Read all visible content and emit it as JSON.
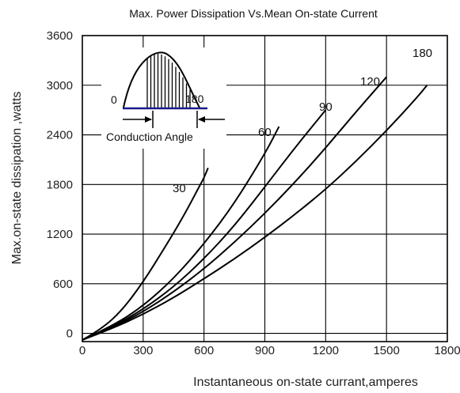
{
  "chart_data": {
    "type": "line",
    "title": "Max. Power Dissipation Vs.Mean On-state Current",
    "xlabel": "Instantaneous on-state currant,amperes",
    "ylabel": "Max.on-state dissipation ,watts",
    "xlim": [
      0,
      1800
    ],
    "ylim": [
      -100,
      3600
    ],
    "xticks": [
      "0",
      "300",
      "600",
      "900",
      "1200",
      "1500",
      "1800"
    ],
    "yticks": [
      "0",
      "600",
      "1200",
      "1800",
      "2400",
      "3000",
      "3600"
    ],
    "grid": true,
    "series": [
      {
        "name": "30",
        "x": [
          0,
          100,
          200,
          300,
          400,
          500,
          580,
          600,
          620
        ],
        "y": [
          -80,
          60,
          290,
          620,
          1010,
          1420,
          1790,
          1880,
          2000
        ]
      },
      {
        "name": "60",
        "x": [
          0,
          150,
          300,
          450,
          600,
          750,
          900,
          970
        ],
        "y": [
          -80,
          90,
          330,
          660,
          1080,
          1570,
          2170,
          2500
        ]
      },
      {
        "name": "90",
        "x": [
          0,
          150,
          300,
          450,
          600,
          750,
          900,
          1050,
          1200
        ],
        "y": [
          -80,
          80,
          290,
          560,
          900,
          1300,
          1770,
          2250,
          2700
        ]
      },
      {
        "name": "120",
        "x": [
          0,
          150,
          300,
          450,
          600,
          750,
          900,
          1050,
          1200,
          1350,
          1500
        ],
        "y": [
          -80,
          70,
          260,
          500,
          780,
          1100,
          1450,
          1830,
          2240,
          2680,
          3100
        ]
      },
      {
        "name": "180",
        "x": [
          0,
          150,
          300,
          450,
          600,
          750,
          900,
          1050,
          1200,
          1350,
          1500,
          1650,
          1700
        ],
        "y": [
          -80,
          60,
          230,
          430,
          660,
          900,
          1160,
          1440,
          1740,
          2080,
          2450,
          2850,
          3000
        ]
      }
    ],
    "inset": {
      "labels": {
        "start": "0",
        "end": "180",
        "caption": "Conduction Angle"
      }
    }
  }
}
